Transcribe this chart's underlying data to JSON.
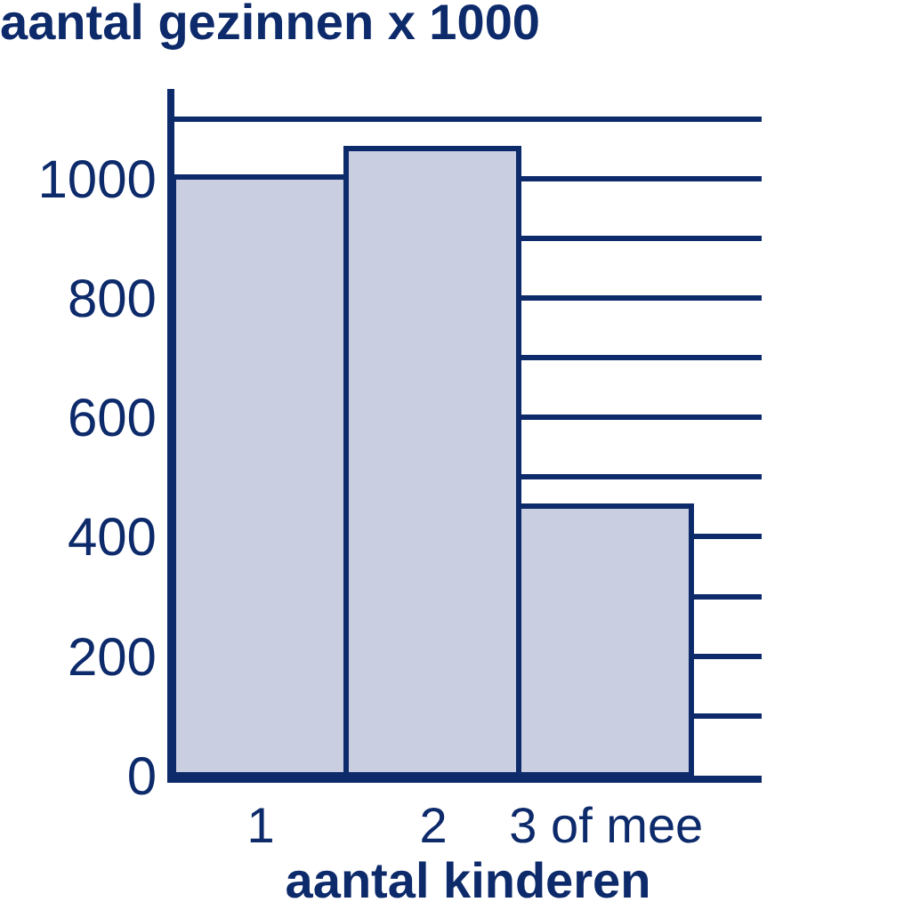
{
  "chart_data": {
    "type": "bar",
    "title": "aantal gezinnen x 1000",
    "xlabel": "aantal kinderen",
    "categories": [
      "1",
      "2",
      "3 of mee"
    ],
    "values": [
      1000,
      1050,
      450
    ],
    "color": "#c9cee0",
    "ylim": [
      0,
      1150
    ],
    "yticks": [
      0,
      {
        "value": 100,
        "label": null
      },
      200,
      {
        "value": 300,
        "label": null
      },
      400,
      {
        "value": 500,
        "label": null
      },
      600,
      {
        "value": 700,
        "label": null
      },
      800,
      {
        "value": 900,
        "label": null
      },
      1000,
      {
        "value": 1100,
        "label": null
      }
    ],
    "grid": "y",
    "legend": false
  }
}
